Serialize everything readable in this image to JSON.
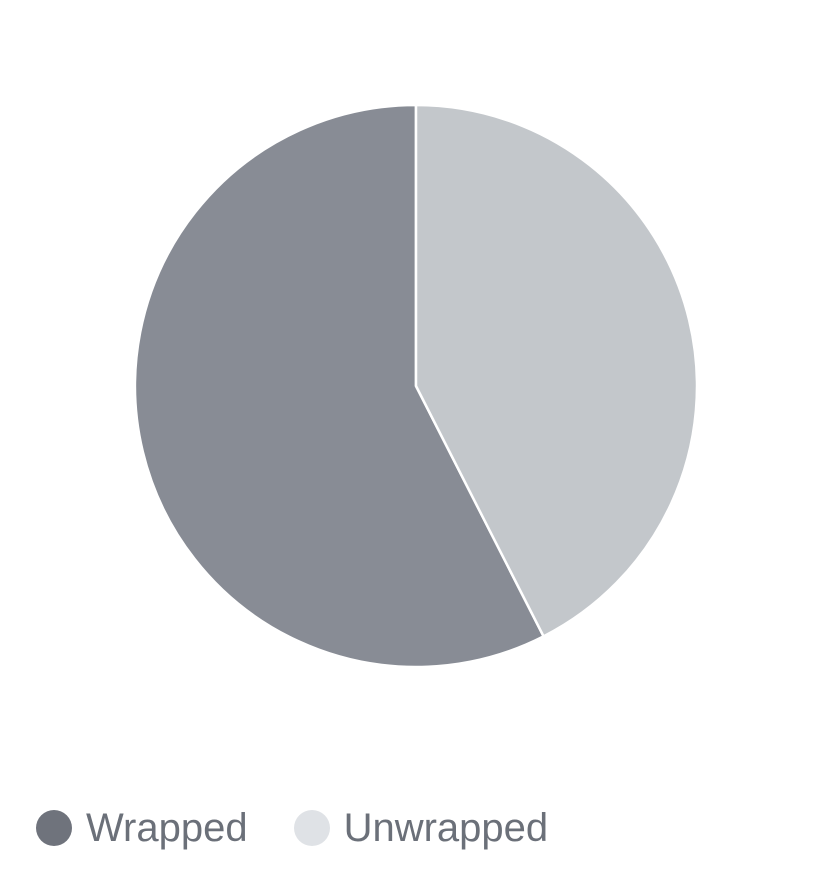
{
  "chart_data": {
    "type": "pie",
    "title": "",
    "slices": [
      {
        "label": "Wrapped",
        "value": 57.5,
        "color": "#888c95",
        "legend_color": "#6f737c"
      },
      {
        "label": "Unwrapped",
        "value": 42.5,
        "color": "#c3c7cb",
        "legend_color": "#dfe2e6"
      }
    ],
    "start_angle_deg": 0,
    "direction": "counterclockwise",
    "slice_border_color": "#ffffff",
    "legend_position": "bottom-left"
  },
  "legend": {
    "items": [
      {
        "label": "Wrapped",
        "color": "#6f737c"
      },
      {
        "label": "Unwrapped",
        "color": "#dfe2e6"
      }
    ]
  }
}
